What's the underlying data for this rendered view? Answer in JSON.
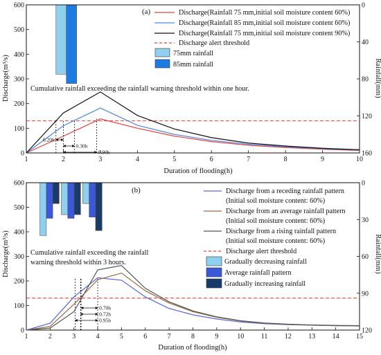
{
  "chart_data": [
    {
      "type": "line",
      "panel_label": "(a)",
      "xlabel": "Duration of flooding(h)",
      "ylabel": "Discharge(m³/s)",
      "y2label": "Rainfall(mm)",
      "x": [
        1,
        2,
        3,
        4,
        5,
        6,
        7,
        8,
        9,
        10
      ],
      "xlim": [
        1,
        10
      ],
      "ylim": [
        0,
        600
      ],
      "y2lim": [
        160,
        0
      ],
      "y2_reversed": true,
      "y2ticks": [
        160,
        120,
        80,
        40,
        0
      ],
      "yticks": [
        0,
        100,
        200,
        300,
        400,
        500,
        600
      ],
      "series": [
        {
          "name": "Discharge(Rainfall 75 mm,initial soil moisture content 60%)",
          "color": "#e8403a",
          "values": [
            0,
            68,
            138,
            100,
            68,
            46,
            31,
            22,
            15,
            10
          ]
        },
        {
          "name": "Discharge(Rainfall 85 mm,initial soil moisture content 60%)",
          "color": "#4a86e8",
          "values": [
            0,
            110,
            182,
            112,
            75,
            51,
            35,
            25,
            17,
            12
          ]
        },
        {
          "name": "Discharge(Rainfall 75 mm,initial soil moisture content 90%)",
          "color": "#111111",
          "values": [
            0,
            162,
            247,
            152,
            97,
            62,
            40,
            28,
            19,
            13
          ]
        }
      ],
      "threshold": {
        "name": "Discharge alert threshold",
        "value": 130,
        "color": "#e8403a"
      },
      "rainfall_bars": [
        {
          "name": "75mm rainfall",
          "value": 75,
          "color": "#8fd0ee"
        },
        {
          "name": "85mm rainfall",
          "value": 85,
          "color": "#1e7be0"
        }
      ],
      "annotation": "Cumulative rainfall exceeding the rainfall warning threshold within one hour.",
      "intervals": [
        {
          "label": "0.20h",
          "start": 1.8,
          "end": 2.0
        },
        {
          "label": "0.30h",
          "start": 2.0,
          "end": 2.3
        },
        {
          "label": "0.90h",
          "start": 2.0,
          "end": 2.9
        }
      ]
    },
    {
      "type": "line",
      "panel_label": "(b)",
      "xlabel": "Duration of flooding(h)",
      "ylabel": "Discharge(m³/s)",
      "y2label": "Rainfall(mm)",
      "x": [
        1,
        2,
        3,
        4,
        5,
        6,
        7,
        8,
        9,
        10,
        11,
        12,
        13,
        14,
        15
      ],
      "xlim": [
        1,
        15
      ],
      "ylim": [
        0,
        600
      ],
      "y2lim": [
        120,
        0
      ],
      "y2_reversed": true,
      "y2ticks": [
        120,
        90,
        60,
        30,
        0
      ],
      "yticks": [
        0,
        100,
        200,
        300,
        400,
        500,
        600
      ],
      "series": [
        {
          "name": "Discharge from a receding rainfall pattern",
          "note": "(Initial soil moisture content: 60%)",
          "color": "#5566dd",
          "values": [
            0,
            28,
            135,
            213,
            203,
            135,
            88,
            62,
            45,
            33,
            26,
            22,
            20,
            18,
            17
          ]
        },
        {
          "name": "Discharge from an average rainfall pattern",
          "note": "(Initial soil moisture content: 60%)",
          "color": "#9a6a45",
          "values": [
            0,
            15,
            105,
            205,
            232,
            160,
            110,
            75,
            52,
            37,
            28,
            23,
            20,
            18,
            17
          ]
        },
        {
          "name": "Discharge from a rising rainfall pattern",
          "note": "(Initial soil moisture content: 60%)",
          "color": "#555555",
          "values": [
            0,
            8,
            75,
            245,
            263,
            170,
            115,
            78,
            54,
            38,
            29,
            24,
            21,
            19,
            18
          ]
        }
      ],
      "threshold": {
        "name": "Discharge alert threshold",
        "value": 130,
        "color": "#e8403a"
      },
      "rainfall_groups": {
        "legend": [
          {
            "name": "Gradually decreasing rainfall",
            "color": "#8fd0ee"
          },
          {
            "name": "Average rainfall pattern",
            "color": "#3a58d8"
          },
          {
            "name": "Gradually increasing rainfall",
            "color": "#1a3a6a"
          }
        ],
        "hours": [
          1,
          2,
          3
        ],
        "patterns": [
          [
            43,
            26,
            17
          ],
          [
            29,
            29,
            28
          ],
          [
            17,
            26,
            39
          ]
        ]
      },
      "annotation": "Cumulative rainfall exceeding the rainfall warning threshold within 3 hours.",
      "intervals": [
        {
          "label": "0.70h",
          "start": 3.3,
          "end": 4.0
        },
        {
          "label": "0.72h",
          "start": 3.28,
          "end": 4.0
        },
        {
          "label": "0.95h",
          "start": 3.05,
          "end": 4.0
        }
      ]
    }
  ]
}
